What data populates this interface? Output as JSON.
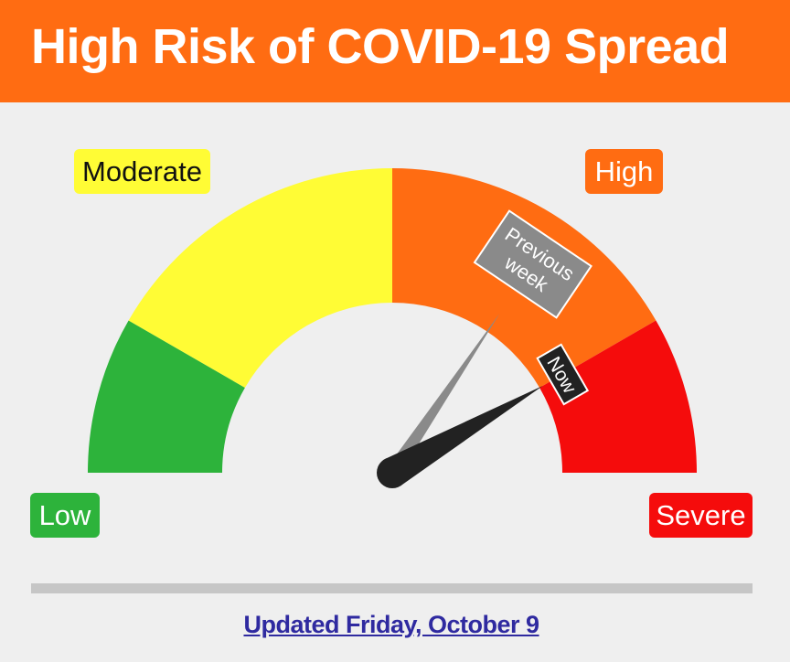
{
  "header": {
    "title": "High Risk of COVID-19 Spread"
  },
  "colors": {
    "header_bg": "#ff6c12",
    "low": "#2db33b",
    "moderate": "#fffc35",
    "high": "#ff6c12",
    "severe": "#f50c0c",
    "previous_needle": "#8a8a8a",
    "now_needle": "#222222",
    "link": "#2f2aa0"
  },
  "chart_data": {
    "type": "gauge",
    "title": "",
    "scale_range": [
      0,
      180
    ],
    "zones": [
      {
        "name": "Low",
        "from": 0,
        "to": 30,
        "color": "#2db33b"
      },
      {
        "name": "Moderate",
        "from": 30,
        "to": 90,
        "color": "#fffc35"
      },
      {
        "name": "High",
        "from": 90,
        "to": 150,
        "color": "#ff6c12"
      },
      {
        "name": "Severe",
        "from": 150,
        "to": 180,
        "color": "#f50c0c"
      }
    ],
    "labels": {
      "low": "Low",
      "moderate": "Moderate",
      "high": "High",
      "severe": "Severe"
    },
    "needles": [
      {
        "name": "Previous week",
        "value": 124,
        "color": "#8a8a8a"
      },
      {
        "name": "Now",
        "value": 150,
        "color": "#222222"
      }
    ],
    "needle_labels": {
      "previous": [
        "Previous",
        "week"
      ],
      "now": "Now"
    }
  },
  "footer": {
    "updated": "Updated Friday, October 9"
  }
}
